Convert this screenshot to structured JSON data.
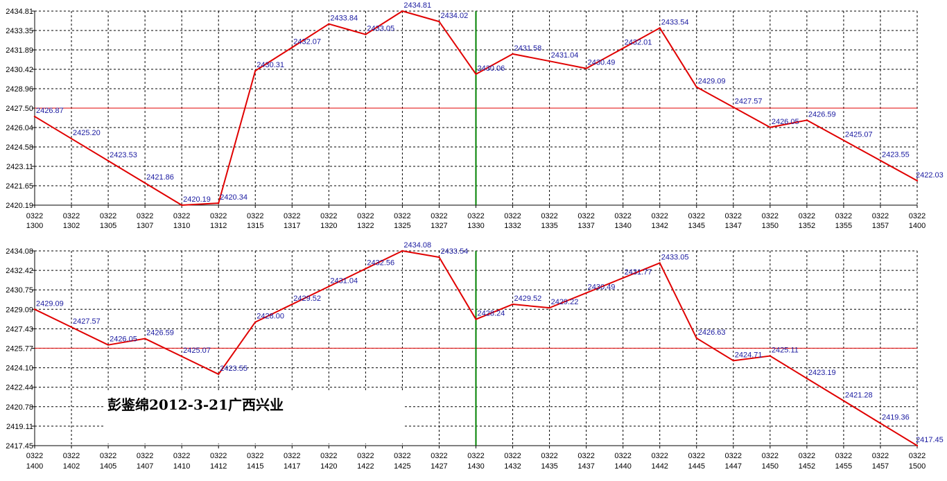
{
  "watermark": "彭鉴绵2012-3-21广西兴业",
  "colors": {
    "line": "#e00000",
    "reference_line": "#e00000",
    "marker_line": "#008000",
    "grid": "#000000",
    "label": "#1a1aa0",
    "background": "#ffffff"
  },
  "chart_data": [
    {
      "type": "line",
      "ylim": [
        2420.19,
        2434.81
      ],
      "yticks": [
        "2434.81",
        "2433.35",
        "2431.89",
        "2430.42",
        "2428.96",
        "2427.50",
        "2426.04",
        "2424.58",
        "2423.11",
        "2421.65",
        "2420.19"
      ],
      "reference_y": 2427.5,
      "marker_x_index": 12,
      "x_dates": [
        "0322",
        "0322",
        "0322",
        "0322",
        "0322",
        "0322",
        "0322",
        "0322",
        "0322",
        "0322",
        "0322",
        "0322",
        "0322",
        "0322",
        "0322",
        "0322",
        "0322",
        "0322",
        "0322",
        "0322",
        "0322",
        "0322",
        "0322",
        "0322",
        "0322"
      ],
      "x_times": [
        "1300",
        "1302",
        "1305",
        "1307",
        "1310",
        "1312",
        "1315",
        "1317",
        "1320",
        "1322",
        "1325",
        "1327",
        "1330",
        "1332",
        "1335",
        "1337",
        "1340",
        "1342",
        "1345",
        "1347",
        "1350",
        "1352",
        "1355",
        "1357",
        "1400"
      ],
      "points": [
        {
          "xi": 0,
          "y": 2426.87,
          "label": "2426.87"
        },
        {
          "xi": 1,
          "y": 2425.2,
          "label": "2425.20"
        },
        {
          "xi": 2,
          "y": 2423.53,
          "label": "2423.53"
        },
        {
          "xi": 3,
          "y": 2421.86,
          "label": "2421.86"
        },
        {
          "xi": 4,
          "y": 2420.19,
          "label": "2420.19"
        },
        {
          "xi": 5,
          "y": 2420.34,
          "label": "2420.34"
        },
        {
          "xi": 6,
          "y": 2430.31,
          "label": "2430.31"
        },
        {
          "xi": 7,
          "y": 2432.07,
          "label": "2432.07"
        },
        {
          "xi": 8,
          "y": 2433.84,
          "label": "2433.84"
        },
        {
          "xi": 9,
          "y": 2433.05,
          "label": "2433.05"
        },
        {
          "xi": 10,
          "y": 2434.81,
          "label": "2434.81"
        },
        {
          "xi": 11,
          "y": 2434.02,
          "label": "2434.02"
        },
        {
          "xi": 12,
          "y": 2430.06,
          "label": "2430.06"
        },
        {
          "xi": 13,
          "y": 2431.58,
          "label": "2431.58"
        },
        {
          "xi": 14,
          "y": 2431.04,
          "label": "2431.04"
        },
        {
          "xi": 15,
          "y": 2430.49,
          "label": "2430.49"
        },
        {
          "xi": 16,
          "y": 2432.01,
          "label": "2432.01"
        },
        {
          "xi": 17,
          "y": 2433.54,
          "label": "2433.54"
        },
        {
          "xi": 18,
          "y": 2429.09,
          "label": "2429.09"
        },
        {
          "xi": 19,
          "y": 2427.57,
          "label": "2427.57"
        },
        {
          "xi": 20,
          "y": 2426.05,
          "label": "2426.05"
        },
        {
          "xi": 21,
          "y": 2426.59,
          "label": "2426.59"
        },
        {
          "xi": 22,
          "y": 2425.07,
          "label": "2425.07"
        },
        {
          "xi": 23,
          "y": 2423.55,
          "label": "2423.55"
        },
        {
          "xi": 24,
          "y": 2422.03,
          "label": "2422.03"
        }
      ]
    },
    {
      "type": "line",
      "ylim": [
        2417.45,
        2434.08
      ],
      "yticks": [
        "2434.08",
        "2432.42",
        "2430.75",
        "2429.09",
        "2427.43",
        "2425.77",
        "2424.10",
        "2422.44",
        "2420.78",
        "2419.11",
        "2417.45"
      ],
      "reference_y": 2425.77,
      "marker_x_index": 12,
      "x_dates": [
        "0322",
        "0322",
        "0322",
        "0322",
        "0322",
        "0322",
        "0322",
        "0322",
        "0322",
        "0322",
        "0322",
        "0322",
        "0322",
        "0322",
        "0322",
        "0322",
        "0322",
        "0322",
        "0322",
        "0322",
        "0322",
        "0322",
        "0322",
        "0322",
        "0322"
      ],
      "x_times": [
        "1400",
        "1402",
        "1405",
        "1407",
        "1410",
        "1412",
        "1415",
        "1417",
        "1420",
        "1422",
        "1425",
        "1427",
        "1430",
        "1432",
        "1435",
        "1437",
        "1440",
        "1442",
        "1445",
        "1447",
        "1450",
        "1452",
        "1455",
        "1457",
        "1500"
      ],
      "points": [
        {
          "xi": 0,
          "y": 2429.09,
          "label": "2429.09"
        },
        {
          "xi": 1,
          "y": 2427.57,
          "label": "2427.57"
        },
        {
          "xi": 2,
          "y": 2426.05,
          "label": "2426.05"
        },
        {
          "xi": 3,
          "y": 2426.59,
          "label": "2426.59"
        },
        {
          "xi": 4,
          "y": 2425.07,
          "label": "2425.07"
        },
        {
          "xi": 5,
          "y": 2423.55,
          "label": "2423.55"
        },
        {
          "xi": 6,
          "y": 2428.0,
          "label": "2428.00"
        },
        {
          "xi": 7,
          "y": 2429.52,
          "label": "2429.52"
        },
        {
          "xi": 8,
          "y": 2431.04,
          "label": "2431.04"
        },
        {
          "xi": 9,
          "y": 2432.56,
          "label": "2432.56"
        },
        {
          "xi": 10,
          "y": 2434.08,
          "label": "2434.08"
        },
        {
          "xi": 11,
          "y": 2433.54,
          "label": "2433.54"
        },
        {
          "xi": 12,
          "y": 2428.24,
          "label": "2428.24"
        },
        {
          "xi": 13,
          "y": 2429.52,
          "label": "2429.52"
        },
        {
          "xi": 14,
          "y": 2429.22,
          "label": "2429.22"
        },
        {
          "xi": 15,
          "y": 2430.49,
          "label": "2430.49"
        },
        {
          "xi": 16,
          "y": 2431.77,
          "label": "2431.77"
        },
        {
          "xi": 17,
          "y": 2433.05,
          "label": "2433.05"
        },
        {
          "xi": 18,
          "y": 2426.63,
          "label": "2426.63"
        },
        {
          "xi": 19,
          "y": 2424.71,
          "label": "2424.71"
        },
        {
          "xi": 20,
          "y": 2425.11,
          "label": "2425.11"
        },
        {
          "xi": 21,
          "y": 2423.19,
          "label": "2423.19"
        },
        {
          "xi": 22,
          "y": 2421.28,
          "label": "2421.28"
        },
        {
          "xi": 23,
          "y": 2419.36,
          "label": "2419.36"
        },
        {
          "xi": 24,
          "y": 2417.45,
          "label": "2417.45"
        }
      ]
    }
  ]
}
